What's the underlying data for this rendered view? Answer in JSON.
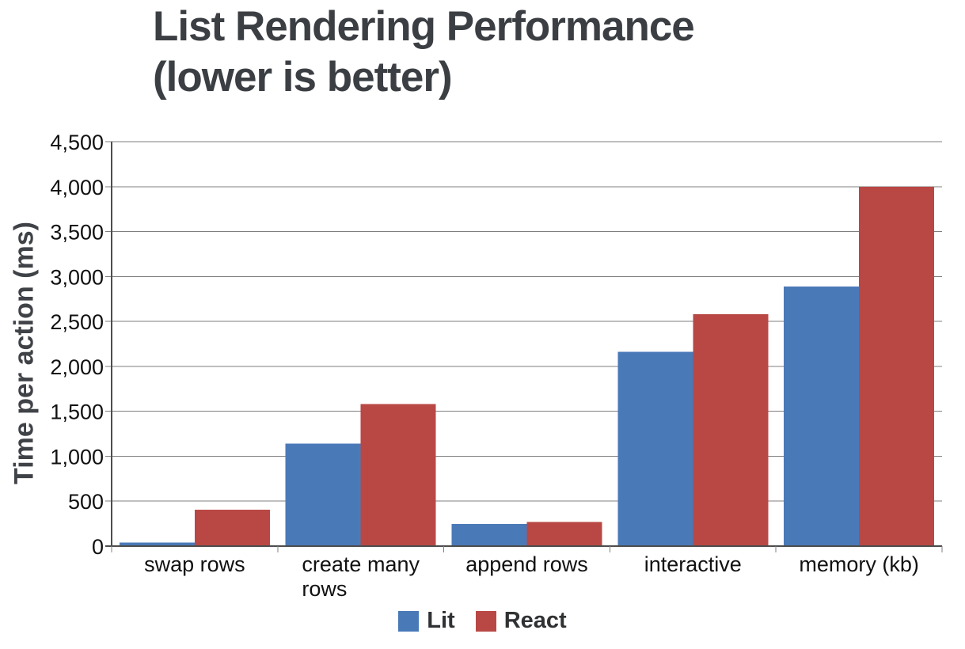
{
  "chart_data": {
    "type": "bar",
    "title": "List Rendering Performance (lower is better)",
    "title_lines": [
      "List Rendering Performance",
      "(lower is better)"
    ],
    "ylabel": "Time per action (ms)",
    "xlabel": "",
    "categories": [
      "swap rows",
      "create many rows",
      "append rows",
      "interactive",
      "memory (kb)"
    ],
    "series": [
      {
        "name": "Lit",
        "color": "#4a79b8",
        "values": [
          40,
          1140,
          245,
          2160,
          2890
        ]
      },
      {
        "name": "React",
        "color": "#b94845",
        "values": [
          405,
          1580,
          270,
          2580,
          4000
        ]
      }
    ],
    "ylim": [
      0,
      4500
    ],
    "ytick_step": 500,
    "ytick_labels": [
      "0",
      "500",
      "1,000",
      "1,500",
      "2,000",
      "2,500",
      "3,000",
      "3,500",
      "4,000",
      "4,500"
    ],
    "grid": true,
    "legend_position": "bottom"
  },
  "style": {
    "grid_color": "#7f7f7f",
    "axis_color": "#4d4d4d",
    "tick_text_color": "#111111",
    "title_color": "#3b3e42",
    "legend_text_color": "#2f3133"
  }
}
